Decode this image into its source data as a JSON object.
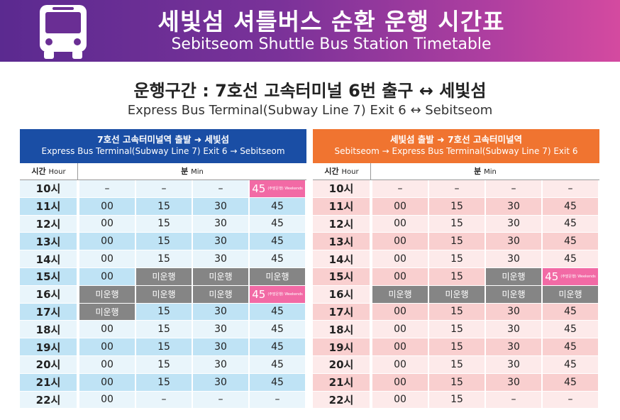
{
  "header": {
    "title_ko": "세빛섬 셔틀버스 순환 운행 시간표",
    "title_en": "Sebitseom Shuttle Bus Station Timetable",
    "icon": "bus-icon"
  },
  "route": {
    "ko": "운행구간 : 7호선 고속터미널 6번 출구 ↔ 세빛섬",
    "en": "Express Bus Terminal(Subway Line 7) Exit 6 ↔ Sebitseom"
  },
  "colors": {
    "left_header": "#1a4ea5",
    "right_header": "#f07430",
    "not_operating": "#858585",
    "weekend": "#f26aa5"
  },
  "tables": [
    {
      "title_ko": "7호선 고속터미널역 출발 ➜ 세빛섬",
      "title_en": "Express Bus Terminal(Subway Line 7) Exit 6 → Sebitseom",
      "hour_label": "시간",
      "hour_label_en": "Hour",
      "min_label": "분",
      "min_label_en": "Min",
      "rows": [
        {
          "hour": "10시",
          "mins": [
            {
              "t": "–"
            },
            {
              "t": "–"
            },
            {
              "t": "–"
            },
            {
              "t": "45",
              "k": "weekend",
              "tag": "(주말운행) Weekends"
            }
          ]
        },
        {
          "hour": "11시",
          "mins": [
            {
              "t": "00"
            },
            {
              "t": "15"
            },
            {
              "t": "30"
            },
            {
              "t": "45"
            }
          ]
        },
        {
          "hour": "12시",
          "mins": [
            {
              "t": "00"
            },
            {
              "t": "15"
            },
            {
              "t": "30"
            },
            {
              "t": "45"
            }
          ]
        },
        {
          "hour": "13시",
          "mins": [
            {
              "t": "00"
            },
            {
              "t": "15"
            },
            {
              "t": "30"
            },
            {
              "t": "45"
            }
          ]
        },
        {
          "hour": "14시",
          "mins": [
            {
              "t": "00"
            },
            {
              "t": "15"
            },
            {
              "t": "30"
            },
            {
              "t": "45"
            }
          ]
        },
        {
          "hour": "15시",
          "mins": [
            {
              "t": "00"
            },
            {
              "t": "미운행",
              "k": "none"
            },
            {
              "t": "미운행",
              "k": "none"
            },
            {
              "t": "미운행",
              "k": "none"
            }
          ]
        },
        {
          "hour": "16시",
          "mins": [
            {
              "t": "미운행",
              "k": "none"
            },
            {
              "t": "미운행",
              "k": "none"
            },
            {
              "t": "미운행",
              "k": "none"
            },
            {
              "t": "45",
              "k": "weekend",
              "tag": "(주말운행) Weekends"
            }
          ]
        },
        {
          "hour": "17시",
          "mins": [
            {
              "t": "미운행",
              "k": "none"
            },
            {
              "t": "15"
            },
            {
              "t": "30"
            },
            {
              "t": "45"
            }
          ]
        },
        {
          "hour": "18시",
          "mins": [
            {
              "t": "00"
            },
            {
              "t": "15"
            },
            {
              "t": "30"
            },
            {
              "t": "45"
            }
          ]
        },
        {
          "hour": "19시",
          "mins": [
            {
              "t": "00"
            },
            {
              "t": "15"
            },
            {
              "t": "30"
            },
            {
              "t": "45"
            }
          ]
        },
        {
          "hour": "20시",
          "mins": [
            {
              "t": "00"
            },
            {
              "t": "15"
            },
            {
              "t": "30"
            },
            {
              "t": "45"
            }
          ]
        },
        {
          "hour": "21시",
          "mins": [
            {
              "t": "00"
            },
            {
              "t": "15"
            },
            {
              "t": "30"
            },
            {
              "t": "45"
            }
          ]
        },
        {
          "hour": "22시",
          "mins": [
            {
              "t": "00"
            },
            {
              "t": "–"
            },
            {
              "t": "–"
            },
            {
              "t": "–"
            }
          ]
        }
      ]
    },
    {
      "title_ko": "세빛섬 출발 ➜ 7호선 고속터미널역",
      "title_en": "Sebitseom → Express Bus Terminal(Subway Line 7) Exit 6",
      "hour_label": "시간",
      "hour_label_en": "Hour",
      "min_label": "분",
      "min_label_en": "Min",
      "rows": [
        {
          "hour": "10시",
          "mins": [
            {
              "t": "–"
            },
            {
              "t": "–"
            },
            {
              "t": "–"
            },
            {
              "t": "–"
            }
          ]
        },
        {
          "hour": "11시",
          "mins": [
            {
              "t": "00"
            },
            {
              "t": "15"
            },
            {
              "t": "30"
            },
            {
              "t": "45"
            }
          ]
        },
        {
          "hour": "12시",
          "mins": [
            {
              "t": "00"
            },
            {
              "t": "15"
            },
            {
              "t": "30"
            },
            {
              "t": "45"
            }
          ]
        },
        {
          "hour": "13시",
          "mins": [
            {
              "t": "00"
            },
            {
              "t": "15"
            },
            {
              "t": "30"
            },
            {
              "t": "45"
            }
          ]
        },
        {
          "hour": "14시",
          "mins": [
            {
              "t": "00"
            },
            {
              "t": "15"
            },
            {
              "t": "30"
            },
            {
              "t": "45"
            }
          ]
        },
        {
          "hour": "15시",
          "mins": [
            {
              "t": "00"
            },
            {
              "t": "15"
            },
            {
              "t": "미운행",
              "k": "none"
            },
            {
              "t": "45",
              "k": "weekend",
              "tag": "(주말운행) Weekends"
            }
          ]
        },
        {
          "hour": "16시",
          "mins": [
            {
              "t": "미운행",
              "k": "none"
            },
            {
              "t": "미운행",
              "k": "none"
            },
            {
              "t": "미운행",
              "k": "none"
            },
            {
              "t": "미운행",
              "k": "none"
            }
          ]
        },
        {
          "hour": "17시",
          "mins": [
            {
              "t": "00"
            },
            {
              "t": "15"
            },
            {
              "t": "30"
            },
            {
              "t": "45"
            }
          ]
        },
        {
          "hour": "18시",
          "mins": [
            {
              "t": "00"
            },
            {
              "t": "15"
            },
            {
              "t": "30"
            },
            {
              "t": "45"
            }
          ]
        },
        {
          "hour": "19시",
          "mins": [
            {
              "t": "00"
            },
            {
              "t": "15"
            },
            {
              "t": "30"
            },
            {
              "t": "45"
            }
          ]
        },
        {
          "hour": "20시",
          "mins": [
            {
              "t": "00"
            },
            {
              "t": "15"
            },
            {
              "t": "30"
            },
            {
              "t": "45"
            }
          ]
        },
        {
          "hour": "21시",
          "mins": [
            {
              "t": "00"
            },
            {
              "t": "15"
            },
            {
              "t": "30"
            },
            {
              "t": "45"
            }
          ]
        },
        {
          "hour": "22시",
          "mins": [
            {
              "t": "00"
            },
            {
              "t": "15"
            },
            {
              "t": "–"
            },
            {
              "t": "–"
            }
          ]
        }
      ]
    }
  ]
}
